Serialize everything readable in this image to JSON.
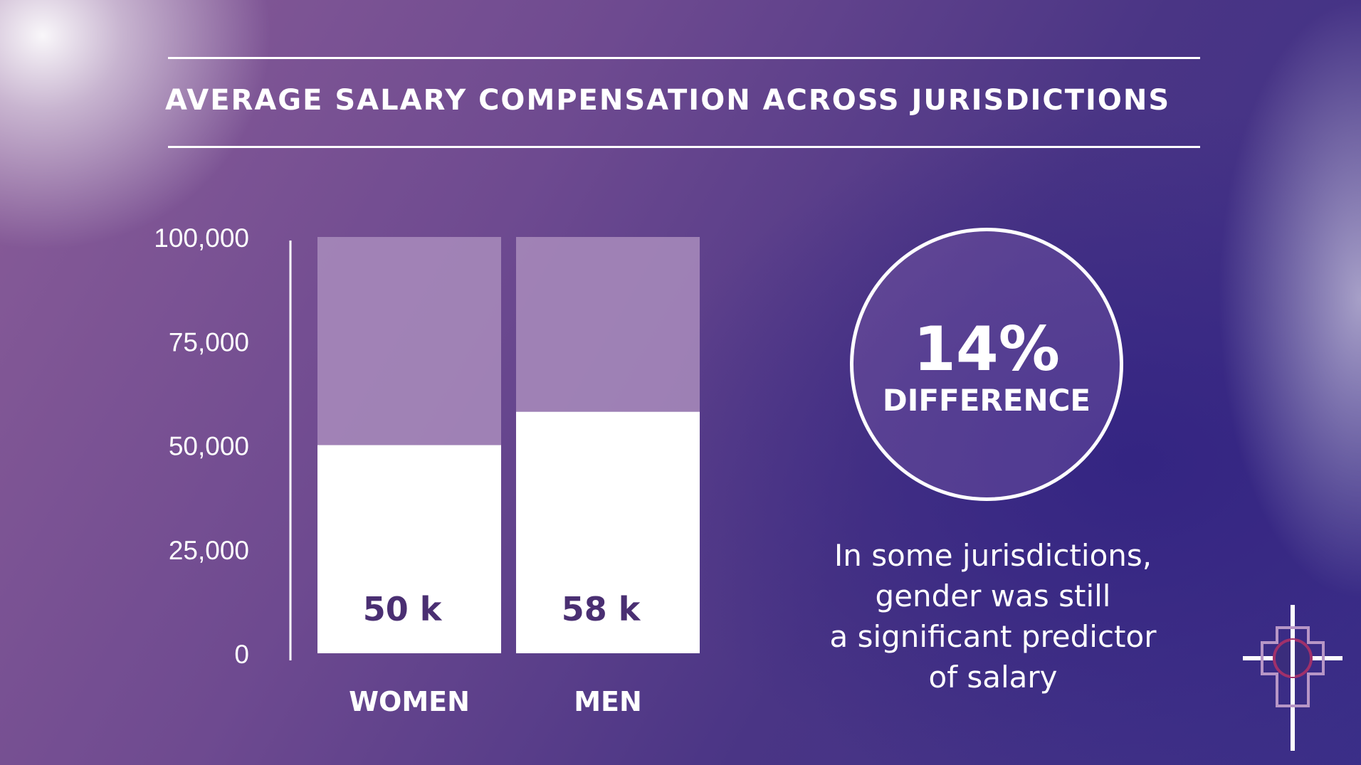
{
  "title": "AVERAGE SALARY COMPENSATION ACROSS JURISDICTIONS",
  "highlight": {
    "value": "14%",
    "label": "DIFFERENCE"
  },
  "caption_lines": [
    "In some jurisdictions,",
    "gender was still",
    "a significant predictor",
    "of salary"
  ],
  "logo": {
    "icon": "cross-emblem-icon"
  },
  "colors": {
    "bar_fill": "#ffffff",
    "bar_track": "#a98cbc",
    "data_label": "#4a2f72",
    "text": "#ffffff"
  },
  "chart_data": {
    "type": "bar",
    "categories": [
      "WOMEN",
      "MEN"
    ],
    "values": [
      50000,
      58000
    ],
    "data_labels": [
      "50 k",
      "58 k"
    ],
    "ylim": [
      0,
      100000
    ],
    "yticks": [
      0,
      25000,
      50000,
      75000,
      100000
    ],
    "ytick_labels": [
      "0",
      "25,000",
      "50,000",
      "75,000",
      "100,000"
    ],
    "xlabel": "",
    "ylabel": "",
    "grid": false,
    "legend": "none"
  }
}
